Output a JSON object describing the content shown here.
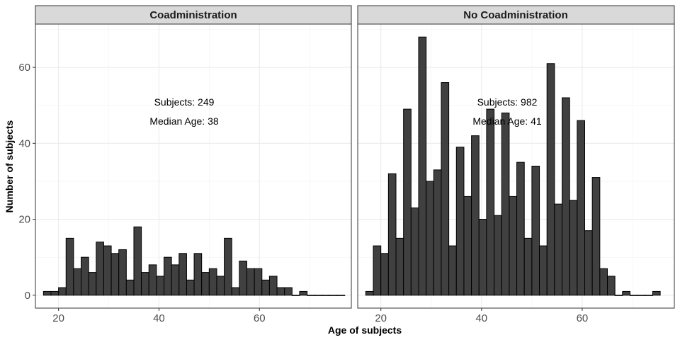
{
  "chart_data": {
    "type": "bar",
    "xlabel": "Age of subjects",
    "ylabel": "Number of subjects",
    "x_ticks": [
      20,
      40,
      60
    ],
    "y_ticks": [
      0,
      20,
      40,
      60
    ],
    "xlim": [
      15.4,
      78.3
    ],
    "ylim": [
      -3.4,
      71.4
    ],
    "bin_width": 1.5,
    "bin_start": 17,
    "panels": [
      {
        "title": "Coadministration",
        "annotation": [
          "Subjects: 249",
          "Median Age: 38"
        ],
        "values": [
          1,
          1,
          2,
          15,
          7,
          10,
          6,
          14,
          13,
          11,
          12,
          4,
          18,
          6,
          8,
          5,
          10,
          8,
          11,
          4,
          11,
          6,
          7,
          5,
          15,
          2,
          9,
          7,
          7,
          4,
          5,
          2,
          2,
          0,
          1,
          0,
          0,
          0,
          0,
          0
        ]
      },
      {
        "title": "No Coadministration",
        "annotation": [
          "Subjects: 982",
          "Median Age: 41"
        ],
        "values": [
          1,
          13,
          11,
          32,
          15,
          49,
          23,
          68,
          30,
          33,
          56,
          13,
          39,
          26,
          42,
          20,
          49,
          21,
          48,
          26,
          35,
          15,
          34,
          13,
          61,
          24,
          52,
          25,
          46,
          17,
          31,
          7,
          5,
          0,
          1,
          0,
          0,
          0,
          1
        ]
      }
    ]
  }
}
